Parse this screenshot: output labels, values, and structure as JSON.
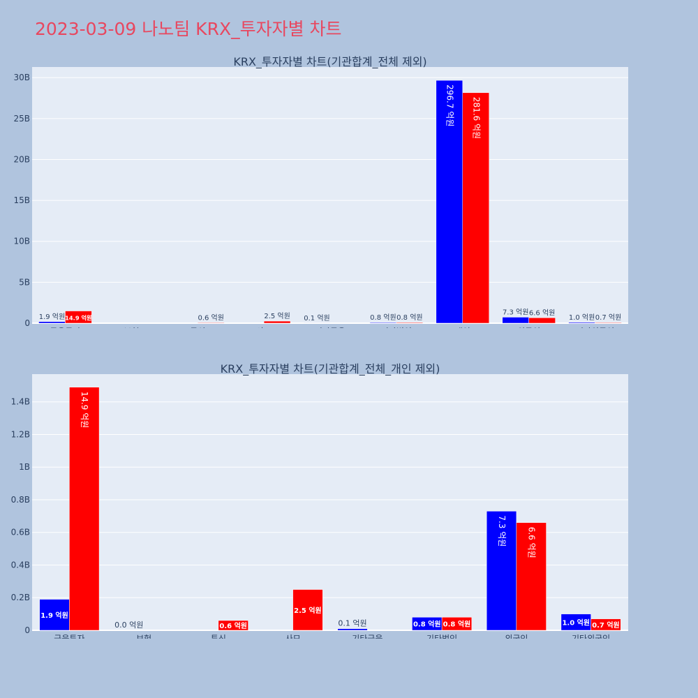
{
  "page_title": "2023-03-09 나노팀 KRX_투자자별 차트",
  "colors": {
    "background": "#b0c4de",
    "plot_bg": "#e5ecf6",
    "buy": "#0000ff",
    "sell": "#ff0000",
    "title": "#e8475f"
  },
  "chart_data": [
    {
      "type": "bar",
      "title": "KRX_투자자별 차트(기관합계_전체 제외)",
      "categories": [
        "금융투자",
        "보험",
        "투신",
        "사모",
        "기타금융",
        "기타법인",
        "개인",
        "외국인",
        "기타외국인"
      ],
      "series": [
        {
          "color": "#0000ff",
          "values": [
            0.19,
            0,
            0,
            0,
            0.01,
            0.08,
            29.67,
            0.73,
            0.1
          ],
          "labels": [
            "1.9 억원",
            "",
            "",
            "",
            "0.1 억원",
            "0.8 억원",
            "296.7 억원",
            "7.3 억원",
            "1.0 억원"
          ]
        },
        {
          "color": "#ff0000",
          "values": [
            1.49,
            0,
            0.06,
            0.25,
            0,
            0.08,
            28.16,
            0.66,
            0.07
          ],
          "labels": [
            "14.9 억원",
            "",
            "0.6 억원",
            "2.5 억원",
            "",
            "0.8 억원",
            "281.6 억원",
            "6.6 억원",
            "0.7 억원"
          ]
        }
      ],
      "yunit": "B",
      "ylim": [
        0,
        31.3
      ],
      "yticks": [
        0,
        5,
        10,
        15,
        20,
        25,
        30
      ],
      "ytick_labels": [
        "0",
        "5B",
        "10B",
        "15B",
        "20B",
        "25B",
        "30B"
      ],
      "grid": true
    },
    {
      "type": "bar",
      "title": "KRX_투자자별 차트(기관합계_전체_개인 제외)",
      "categories": [
        "금융투자",
        "보험",
        "투신",
        "사모",
        "기타금융",
        "기타법인",
        "외국인",
        "기타외국인"
      ],
      "series": [
        {
          "color": "#0000ff",
          "values": [
            0.19,
            0,
            0,
            0,
            0.01,
            0.08,
            0.73,
            0.1
          ],
          "labels": [
            "1.9 억원",
            "0.0 억원",
            "",
            "",
            "0.1 억원",
            "0.8 억원",
            "7.3 억원",
            "1.0 억원"
          ]
        },
        {
          "color": "#ff0000",
          "values": [
            1.49,
            0,
            0.06,
            0.25,
            0,
            0.08,
            0.66,
            0.07
          ],
          "labels": [
            "14.9 억원",
            "",
            "0.6 억원",
            "2.5 억원",
            "",
            "0.8 억원",
            "6.6 억원",
            "0.7 억원"
          ]
        }
      ],
      "yunit": "B",
      "ylim": [
        0,
        1.57
      ],
      "yticks": [
        0,
        0.2,
        0.4,
        0.6,
        0.8,
        1.0,
        1.2,
        1.4
      ],
      "ytick_labels": [
        "0",
        "0.2B",
        "0.4B",
        "0.6B",
        "0.8B",
        "1B",
        "1.2B",
        "1.4B"
      ],
      "grid": true
    }
  ]
}
